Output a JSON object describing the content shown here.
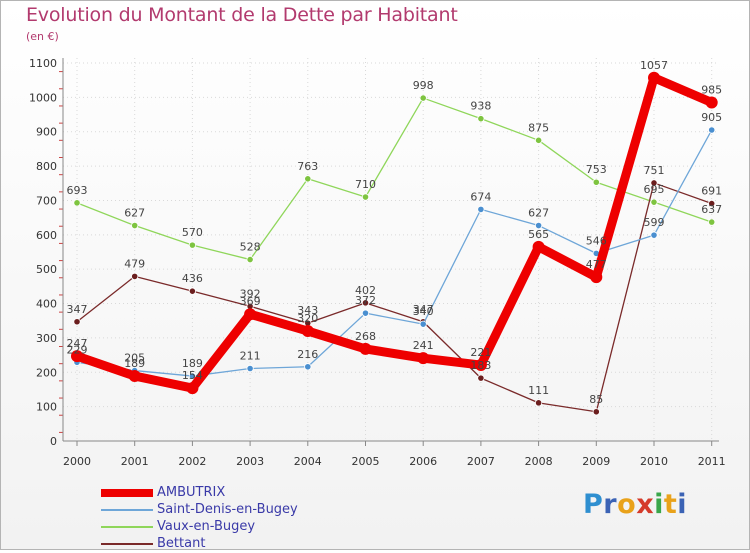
{
  "title": "Evolution du Montant de la Dette par Habitant",
  "unit": "(en €)",
  "logo": {
    "text": "Proxiti",
    "colors": [
      "#2f8fd0",
      "#3b63b5",
      "#e9a21a",
      "#d53b2b",
      "#3aa64a",
      "#e9a21a",
      "#3b63b5"
    ]
  },
  "chart_data": {
    "type": "line",
    "x": [
      "2000",
      "2001",
      "2002",
      "2003",
      "2004",
      "2005",
      "2006",
      "2007",
      "2008",
      "2009",
      "2010",
      "2011"
    ],
    "yticks": [
      "0",
      "100",
      "200",
      "300",
      "400",
      "500",
      "600",
      "700",
      "800",
      "900",
      "1000",
      "1100"
    ],
    "ylim": [
      0,
      1100
    ],
    "grid": true,
    "series": [
      {
        "name": "Vaux-en-Bugey",
        "color": "#8fd65a",
        "marker": "#7ec440",
        "width": 1.3,
        "values": [
          693,
          627,
          570,
          528,
          763,
          710,
          998,
          938,
          875,
          753,
          695,
          637
        ]
      },
      {
        "name": "Bettant",
        "color": "#7a2a2a",
        "marker": "#6b1e1e",
        "width": 1.3,
        "values": [
          347,
          479,
          436,
          392,
          343,
          402,
          347,
          183,
          111,
          85,
          751,
          691
        ]
      },
      {
        "name": "Saint-Denis-en-Bugey",
        "color": "#6ea6d8",
        "marker": "#4a8fd0",
        "width": 1.3,
        "values": [
          229,
          205,
          189,
          211,
          216,
          372,
          340,
          674,
          627,
          546,
          599,
          905
        ]
      },
      {
        "name": "AMBUTRIX",
        "color": "#ee0000",
        "marker": "#ee0000",
        "width": 9,
        "values": [
          247,
          189,
          154,
          369,
          320,
          268,
          241,
          221,
          565,
          477,
          1057,
          985
        ]
      }
    ],
    "legend_order": [
      "AMBUTRIX",
      "Saint-Denis-en-Bugey",
      "Vaux-en-Bugey",
      "Bettant"
    ],
    "legend_position": "bottom-left"
  }
}
